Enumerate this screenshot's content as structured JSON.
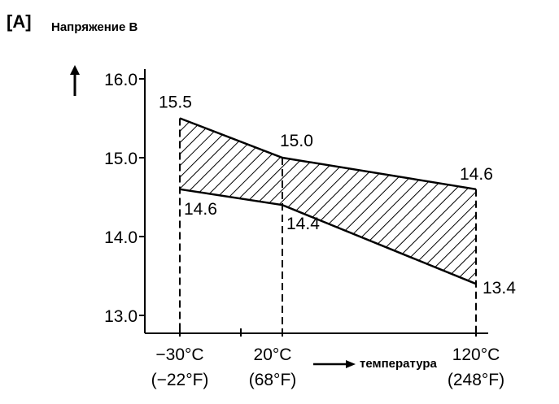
{
  "figure_tag": "[A]",
  "chart_data": {
    "type": "area",
    "title": "",
    "ylabel": "Напряжение В",
    "xlabel": "температура",
    "ylim": [
      13.0,
      16.0
    ],
    "yticks": [
      "13.0",
      "14.0",
      "15.0",
      "16.0"
    ],
    "x": [
      -30,
      20,
      120
    ],
    "x_tick_labels": [
      {
        "c": "−30°C",
        "f": "(−22°F)"
      },
      {
        "c": "20°C",
        "f": "(68°F)"
      },
      {
        "c": "120°C",
        "f": "(248°F)"
      }
    ],
    "series": [
      {
        "values": [
          15.5,
          15.0,
          14.6
        ],
        "labels": [
          "15.5",
          "15.0",
          "14.6"
        ]
      },
      {
        "values": [
          14.6,
          14.4,
          13.4
        ],
        "labels": [
          "14.6",
          "14.4",
          "13.4"
        ]
      }
    ],
    "fill": "hatched",
    "grid": false
  }
}
